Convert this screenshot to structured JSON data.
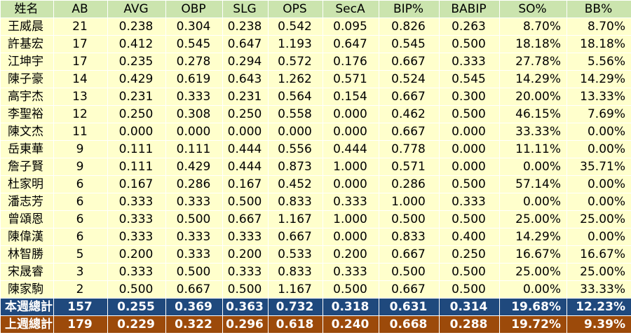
{
  "table": {
    "headers": [
      "姓名",
      "AB",
      "AVG",
      "OBP",
      "SLG",
      "OPS",
      "SecA",
      "BIP%",
      "BABIP",
      "SO%",
      "BB%"
    ],
    "rows": [
      [
        "王威晨",
        "21",
        "0.238",
        "0.304",
        "0.238",
        "0.542",
        "0.095",
        "0.826",
        "0.263",
        "8.70%",
        "8.70%"
      ],
      [
        "許基宏",
        "17",
        "0.412",
        "0.545",
        "0.647",
        "1.193",
        "0.647",
        "0.545",
        "0.500",
        "18.18%",
        "18.18%"
      ],
      [
        "江坤宇",
        "17",
        "0.235",
        "0.278",
        "0.294",
        "0.572",
        "0.176",
        "0.667",
        "0.333",
        "27.78%",
        "5.56%"
      ],
      [
        "陳子豪",
        "14",
        "0.429",
        "0.619",
        "0.643",
        "1.262",
        "0.571",
        "0.524",
        "0.545",
        "14.29%",
        "14.29%"
      ],
      [
        "高宇杰",
        "13",
        "0.231",
        "0.333",
        "0.231",
        "0.564",
        "0.154",
        "0.667",
        "0.300",
        "20.00%",
        "13.33%"
      ],
      [
        "李聖裕",
        "12",
        "0.250",
        "0.308",
        "0.250",
        "0.558",
        "0.000",
        "0.462",
        "0.500",
        "46.15%",
        "7.69%"
      ],
      [
        "陳文杰",
        "11",
        "0.000",
        "0.000",
        "0.000",
        "0.000",
        "0.000",
        "0.667",
        "0.000",
        "33.33%",
        "0.00%"
      ],
      [
        "岳東華",
        "9",
        "0.111",
        "0.111",
        "0.444",
        "0.556",
        "0.444",
        "0.778",
        "0.000",
        "11.11%",
        "0.00%"
      ],
      [
        "詹子賢",
        "9",
        "0.111",
        "0.429",
        "0.444",
        "0.873",
        "1.000",
        "0.571",
        "0.000",
        "0.00%",
        "35.71%"
      ],
      [
        "杜家明",
        "6",
        "0.167",
        "0.286",
        "0.167",
        "0.452",
        "0.000",
        "0.286",
        "0.500",
        "57.14%",
        "0.00%"
      ],
      [
        "潘志芳",
        "6",
        "0.333",
        "0.333",
        "0.500",
        "0.833",
        "0.333",
        "1.000",
        "0.333",
        "0.00%",
        "0.00%"
      ],
      [
        "曾頌恩",
        "6",
        "0.333",
        "0.500",
        "0.667",
        "1.167",
        "1.000",
        "0.500",
        "0.500",
        "25.00%",
        "25.00%"
      ],
      [
        "陳偉漢",
        "6",
        "0.333",
        "0.333",
        "0.333",
        "0.667",
        "0.000",
        "0.833",
        "0.400",
        "14.29%",
        "0.00%"
      ],
      [
        "林智勝",
        "5",
        "0.200",
        "0.333",
        "0.200",
        "0.533",
        "0.200",
        "0.667",
        "0.250",
        "16.67%",
        "16.67%"
      ],
      [
        "宋晟睿",
        "3",
        "0.333",
        "0.500",
        "0.333",
        "0.833",
        "0.333",
        "0.500",
        "0.500",
        "25.00%",
        "25.00%"
      ],
      [
        "陳家駒",
        "2",
        "0.500",
        "0.667",
        "0.500",
        "1.167",
        "0.500",
        "0.667",
        "0.500",
        "0.00%",
        "33.33%"
      ]
    ],
    "totals": [
      {
        "kind": "this-week",
        "cells": [
          "本週總計",
          "157",
          "0.255",
          "0.369",
          "0.363",
          "0.732",
          "0.318",
          "0.631",
          "0.314",
          "19.68%",
          "12.23%"
        ]
      },
      {
        "kind": "last-week",
        "cells": [
          "上週總計",
          "179",
          "0.229",
          "0.322",
          "0.296",
          "0.618",
          "0.240",
          "0.668",
          "0.288",
          "19.72%",
          "9.39%"
        ]
      }
    ]
  },
  "colors": {
    "header_bg": "#cbe4ae",
    "row_bg": "#ffffcc",
    "this_week_bg": "#1f497d",
    "last_week_bg": "#9c4a0a",
    "grid_line": "#ffffff"
  }
}
